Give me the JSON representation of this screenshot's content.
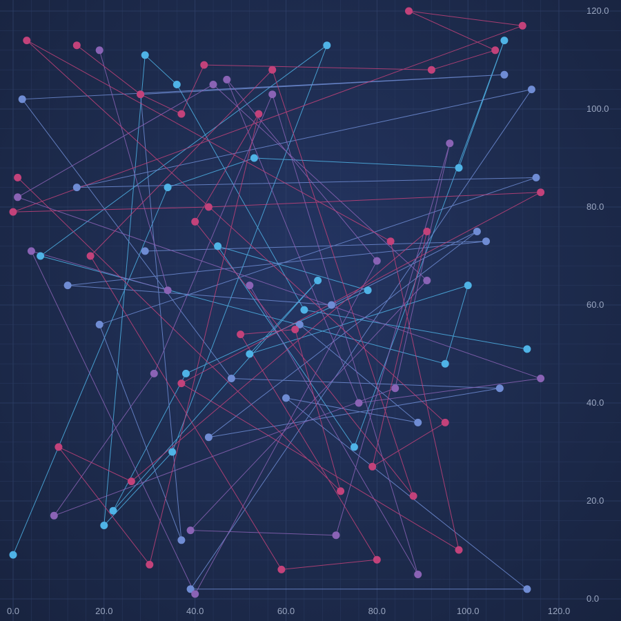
{
  "chart_data": {
    "type": "line",
    "title": "",
    "xlabel": "",
    "ylabel": "",
    "xlim": [
      0,
      120
    ],
    "ylim": [
      0,
      120
    ],
    "x_ticks": [
      "0.0",
      "20.0",
      "40.0",
      "60.0",
      "80.0",
      "100.0",
      "120.0"
    ],
    "y_ticks": [
      "0.0",
      "20.0",
      "40.0",
      "60.0",
      "80.0",
      "100.0",
      "120.0"
    ],
    "grid": true,
    "y_axis_side": "right",
    "series": [
      {
        "color": "#4fb3e6",
        "points": [
          [
            0,
            9
          ],
          [
            34,
            84
          ],
          [
            53,
            90
          ],
          [
            98,
            88
          ],
          [
            108,
            114
          ],
          [
            75,
            31
          ],
          [
            45,
            72
          ],
          [
            78,
            63
          ],
          [
            38,
            46
          ],
          [
            22,
            18
          ],
          [
            67,
            65
          ],
          [
            52,
            50
          ],
          [
            100,
            64
          ],
          [
            95,
            48
          ],
          [
            6,
            70
          ],
          [
            69,
            113
          ],
          [
            35,
            30
          ],
          [
            20,
            15
          ],
          [
            29,
            111
          ],
          [
            36,
            105
          ],
          [
            64,
            59
          ],
          [
            113,
            51
          ]
        ]
      },
      {
        "color": "#6f8cd4",
        "points": [
          [
            29,
            71
          ],
          [
            104,
            73
          ],
          [
            12,
            64
          ],
          [
            70,
            60
          ],
          [
            102,
            75
          ],
          [
            43,
            33
          ],
          [
            107,
            43
          ],
          [
            48,
            45
          ],
          [
            2,
            102
          ],
          [
            108,
            107
          ],
          [
            28,
            103
          ],
          [
            37,
            12
          ],
          [
            19,
            56
          ],
          [
            115,
            86
          ],
          [
            14,
            84
          ],
          [
            114,
            104
          ],
          [
            39,
            2
          ],
          [
            113,
            2
          ],
          [
            60,
            41
          ],
          [
            89,
            36
          ],
          [
            63,
            56
          ]
        ]
      },
      {
        "color": "#8a63b5",
        "points": [
          [
            19,
            112
          ],
          [
            34,
            63
          ],
          [
            4,
            71
          ],
          [
            40,
            1
          ],
          [
            80,
            69
          ],
          [
            47,
            106
          ],
          [
            76,
            40
          ],
          [
            116,
            45
          ],
          [
            1,
            82
          ],
          [
            44,
            105
          ],
          [
            91,
            65
          ],
          [
            39,
            14
          ],
          [
            71,
            13
          ],
          [
            96,
            93
          ],
          [
            84,
            43
          ],
          [
            9,
            17
          ],
          [
            31,
            46
          ],
          [
            57,
            103
          ],
          [
            89,
            5
          ],
          [
            52,
            64
          ]
        ]
      },
      {
        "color": "#c2427a",
        "points": [
          [
            14,
            113
          ],
          [
            28,
            103
          ],
          [
            37,
            99
          ],
          [
            42,
            109
          ],
          [
            92,
            108
          ],
          [
            106,
            112
          ],
          [
            87,
            120
          ],
          [
            112,
            117
          ],
          [
            0,
            79
          ],
          [
            43,
            80
          ],
          [
            116,
            83
          ],
          [
            37,
            44
          ],
          [
            98,
            10
          ],
          [
            83,
            73
          ],
          [
            3,
            114
          ],
          [
            95,
            36
          ],
          [
            79,
            27
          ],
          [
            91,
            75
          ],
          [
            26,
            24
          ],
          [
            10,
            31
          ],
          [
            30,
            7
          ],
          [
            54,
            99
          ],
          [
            40,
            77
          ],
          [
            88,
            21
          ],
          [
            57,
            108
          ],
          [
            17,
            70
          ],
          [
            59,
            6
          ],
          [
            80,
            8
          ],
          [
            50,
            54
          ],
          [
            62,
            55
          ],
          [
            72,
            22
          ],
          [
            1,
            86
          ]
        ]
      }
    ]
  }
}
